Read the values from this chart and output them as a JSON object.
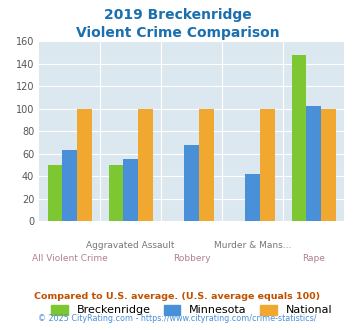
{
  "title_line1": "2019 Breckenridge",
  "title_line2": "Violent Crime Comparison",
  "title_color": "#1a6faf",
  "categories_top": [
    "",
    "Aggravated Assault",
    "",
    "Murder & Mans...",
    ""
  ],
  "categories_bot": [
    "All Violent Crime",
    "",
    "Robbery",
    "",
    "Rape"
  ],
  "breckenridge": [
    50,
    50,
    0,
    0,
    148
  ],
  "minnesota": [
    63,
    55,
    68,
    42,
    102
  ],
  "national": [
    100,
    100,
    100,
    100,
    100
  ],
  "bar_colors": [
    "#7dc832",
    "#4a90d9",
    "#f0a830"
  ],
  "ylim": [
    0,
    160
  ],
  "yticks": [
    0,
    20,
    40,
    60,
    80,
    100,
    120,
    140,
    160
  ],
  "bg_color": "#dce8ef",
  "legend_labels": [
    "Breckenridge",
    "Minnesota",
    "National"
  ],
  "footnote1": "Compared to U.S. average. (U.S. average equals 100)",
  "footnote2": "© 2025 CityRating.com - https://www.cityrating.com/crime-statistics/",
  "footnote1_color": "#c05000",
  "footnote2_color": "#4a90d9",
  "xtick_top_color": "#777777",
  "xtick_bot_color": "#b08090"
}
